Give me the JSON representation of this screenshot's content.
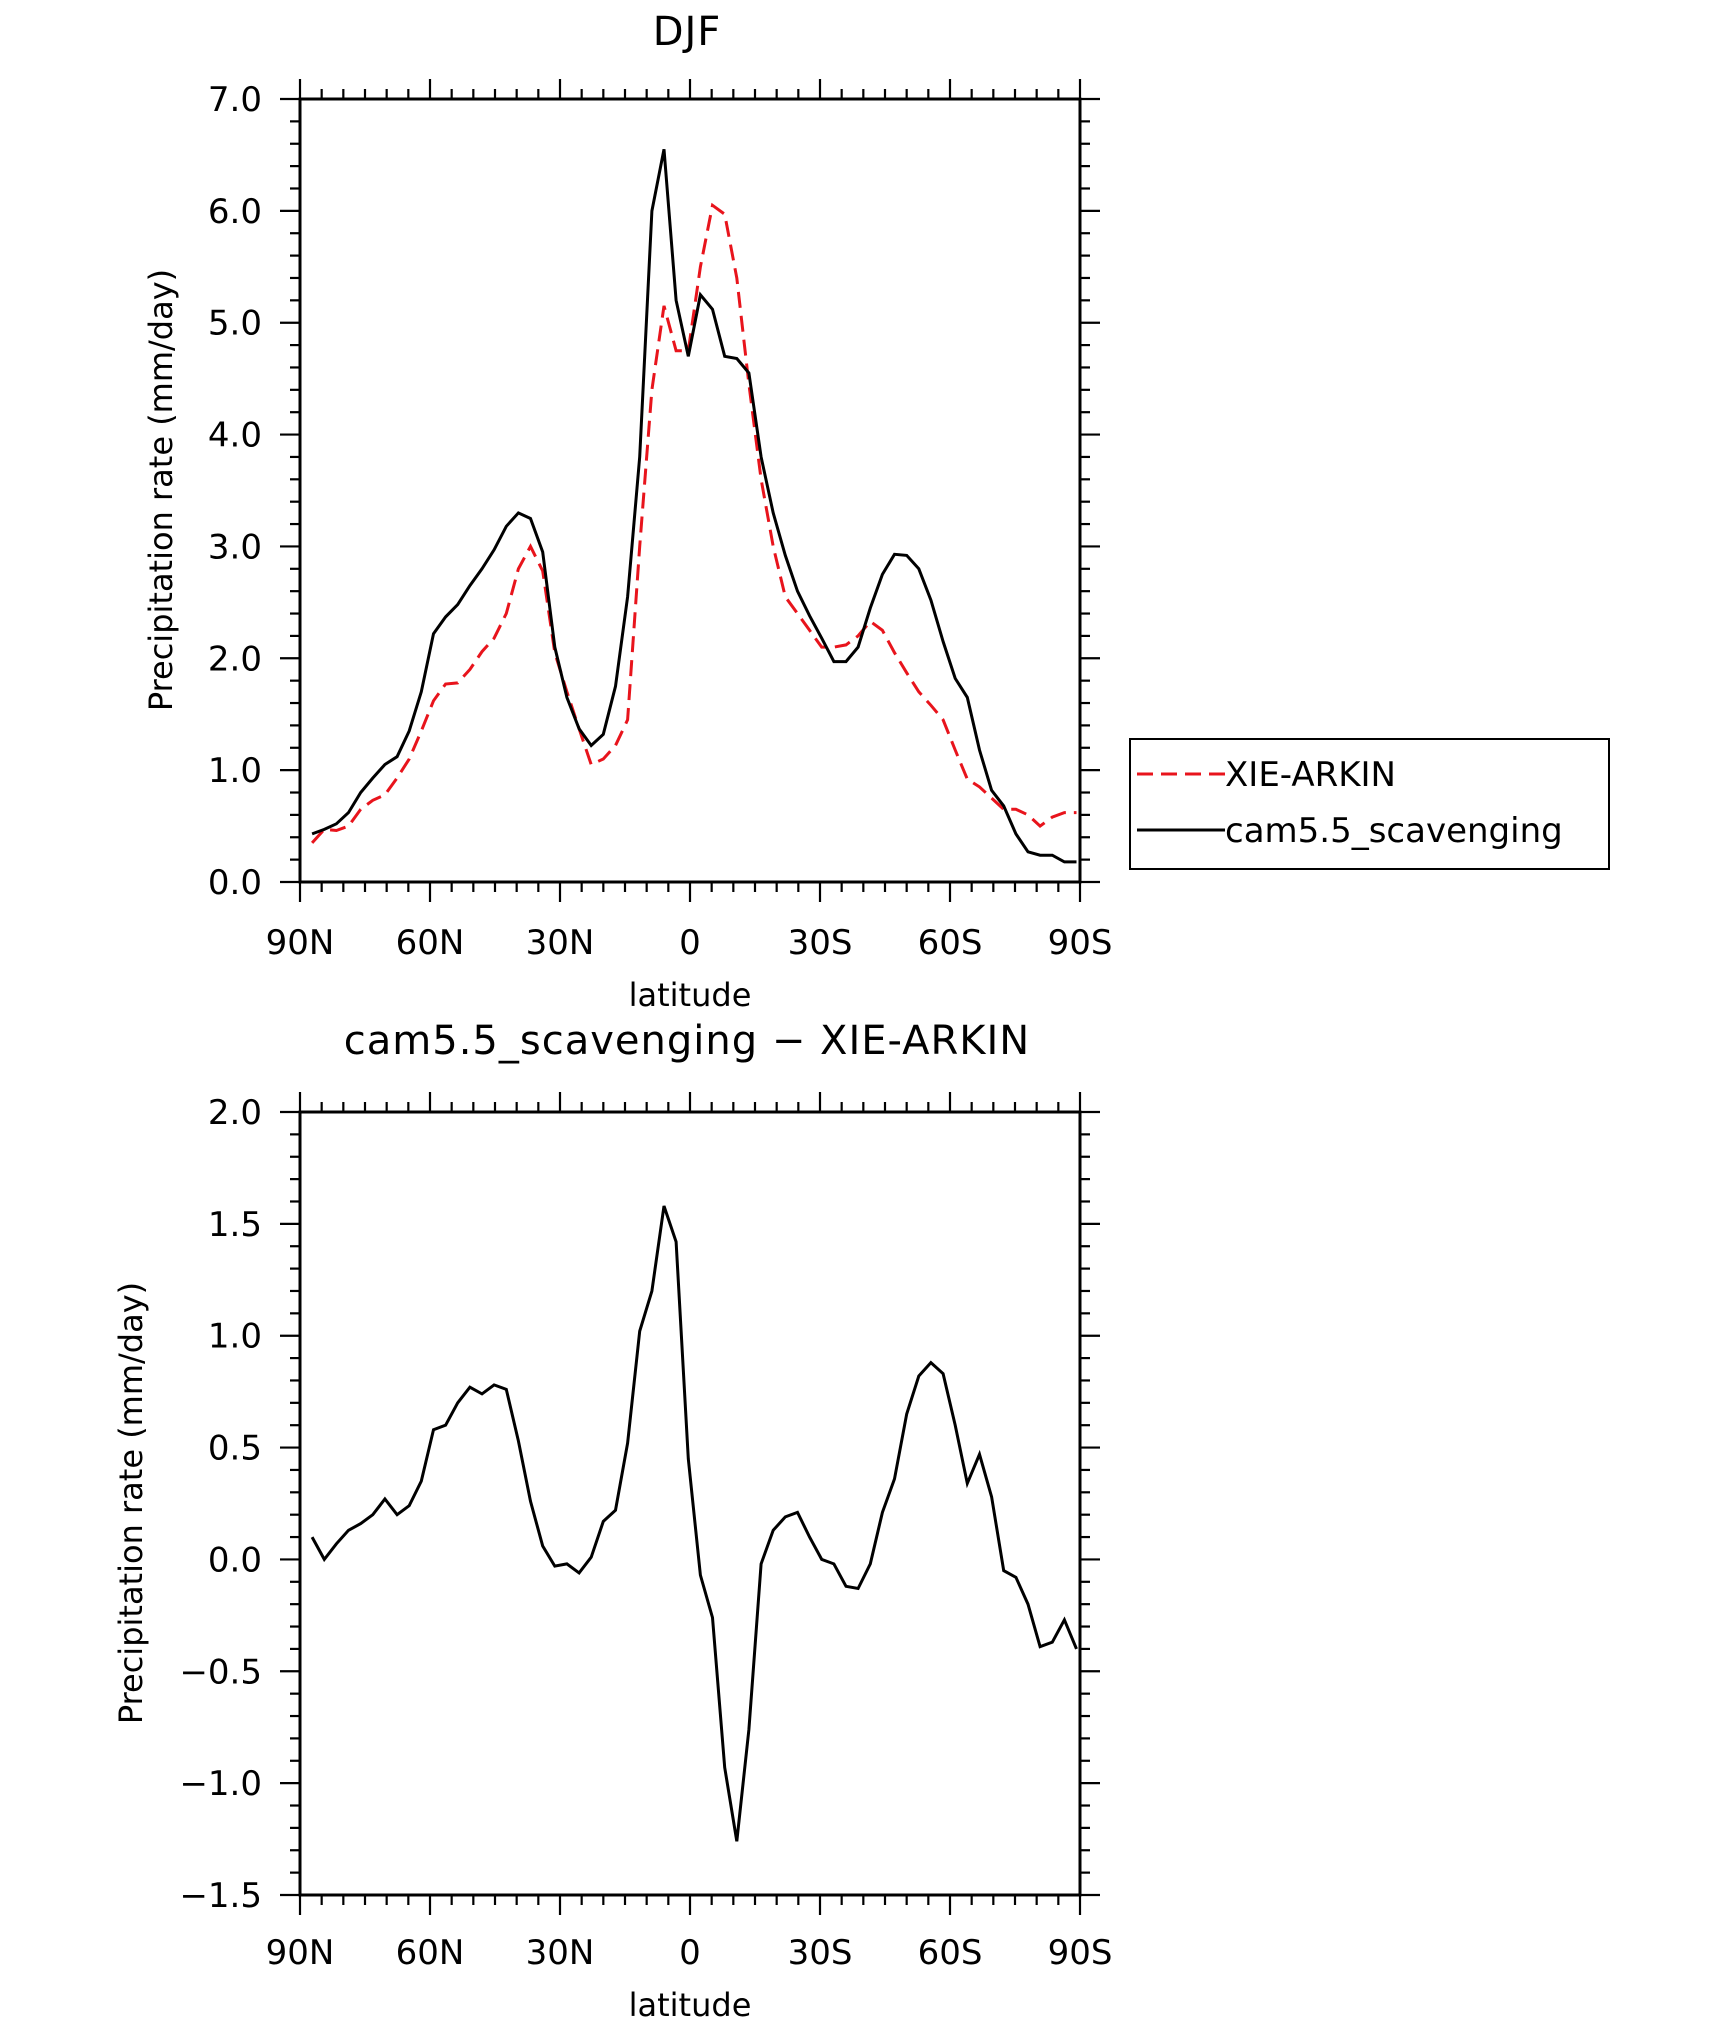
{
  "chart_data": [
    {
      "type": "line",
      "title": "DJF",
      "xlabel": "latitude",
      "ylabel": "Precipitation rate (mm/day)",
      "xlim": [
        -90,
        90
      ],
      "ylim": [
        0.0,
        7.0
      ],
      "xticks": [
        -90,
        -60,
        -30,
        0,
        30,
        60,
        90
      ],
      "xtick_labels": [
        "90N",
        "60N",
        "30N",
        "0",
        "30S",
        "60S",
        "90S"
      ],
      "yticks": [
        0.0,
        1.0,
        2.0,
        3.0,
        4.0,
        5.0,
        6.0,
        7.0
      ],
      "ytick_labels": [
        "0.0",
        "1.0",
        "2.0",
        "3.0",
        "4.0",
        "5.0",
        "6.0",
        "7.0"
      ],
      "legend_position": "right",
      "x": [
        -87.2,
        -84.4,
        -81.6,
        -78.8,
        -76.0,
        -73.2,
        -70.4,
        -67.6,
        -64.8,
        -62.0,
        -59.2,
        -56.4,
        -53.6,
        -50.8,
        -48.0,
        -45.2,
        -42.4,
        -39.6,
        -36.8,
        -34.0,
        -31.2,
        -28.4,
        -25.6,
        -22.8,
        -20.0,
        -17.2,
        -14.4,
        -11.6,
        -8.8,
        -6.0,
        -3.2,
        -0.4,
        2.4,
        5.2,
        8.0,
        10.8,
        13.6,
        16.4,
        19.2,
        22.0,
        24.8,
        27.6,
        30.4,
        33.2,
        36.0,
        38.8,
        41.6,
        44.4,
        47.2,
        50.0,
        52.8,
        55.6,
        58.4,
        61.2,
        64.0,
        66.8,
        69.6,
        72.4,
        75.2,
        78.0,
        80.8,
        83.6,
        86.4,
        89.2
      ],
      "series": [
        {
          "name": "XIE-ARKIN",
          "color": "#e8141c",
          "style": "dashed",
          "values": [
            0.35,
            0.47,
            0.46,
            0.5,
            0.65,
            0.73,
            0.78,
            0.93,
            1.1,
            1.35,
            1.62,
            1.77,
            1.78,
            1.9,
            2.06,
            2.18,
            2.4,
            2.8,
            3.0,
            2.78,
            2.05,
            1.7,
            1.37,
            1.05,
            1.1,
            1.22,
            1.45,
            3.0,
            4.4,
            5.15,
            4.75,
            4.75,
            5.5,
            6.05,
            5.97,
            5.4,
            4.45,
            3.6,
            3.0,
            2.55,
            2.4,
            2.25,
            2.1,
            2.1,
            2.12,
            2.2,
            2.33,
            2.25,
            2.05,
            1.87,
            1.7,
            1.58,
            1.45,
            1.18,
            0.92,
            0.85,
            0.75,
            0.65,
            0.65,
            0.6,
            0.5,
            0.58,
            0.62,
            0.62
          ]
        },
        {
          "name": "cam5.5_scavenging",
          "color": "#000000",
          "style": "solid",
          "values": [
            0.43,
            0.47,
            0.52,
            0.62,
            0.8,
            0.93,
            1.05,
            1.12,
            1.35,
            1.7,
            2.22,
            2.37,
            2.48,
            2.65,
            2.8,
            2.97,
            3.18,
            3.3,
            3.25,
            2.95,
            2.1,
            1.65,
            1.37,
            1.22,
            1.32,
            1.75,
            2.55,
            3.8,
            6.0,
            6.55,
            5.2,
            4.7,
            5.25,
            5.12,
            4.7,
            4.68,
            4.55,
            3.8,
            3.3,
            2.92,
            2.6,
            2.38,
            2.18,
            1.97,
            1.97,
            2.1,
            2.45,
            2.75,
            2.93,
            2.92,
            2.8,
            2.52,
            2.15,
            1.82,
            1.65,
            1.18,
            0.82,
            0.68,
            0.43,
            0.27,
            0.24,
            0.24,
            0.18,
            0.18
          ]
        }
      ]
    },
    {
      "type": "line",
      "title": "cam5.5_scavenging − XIE-ARKIN",
      "xlabel": "latitude",
      "ylabel": "Precipitation rate (mm/day)",
      "xlim": [
        -90,
        90
      ],
      "ylim": [
        -1.5,
        2.0
      ],
      "xticks": [
        -90,
        -60,
        -30,
        0,
        30,
        60,
        90
      ],
      "xtick_labels": [
        "90N",
        "60N",
        "30N",
        "0",
        "30S",
        "60S",
        "90S"
      ],
      "yticks": [
        -1.5,
        -1.0,
        -0.5,
        0.0,
        0.5,
        1.0,
        1.5,
        2.0
      ],
      "ytick_labels": [
        "−1.5",
        "−1.0",
        "−0.5",
        "0.0",
        "0.5",
        "1.0",
        "1.5",
        "2.0"
      ],
      "x": [
        -87.2,
        -84.4,
        -81.6,
        -78.8,
        -76.0,
        -73.2,
        -70.4,
        -67.6,
        -64.8,
        -62.0,
        -59.2,
        -56.4,
        -53.6,
        -50.8,
        -48.0,
        -45.2,
        -42.4,
        -39.6,
        -36.8,
        -34.0,
        -31.2,
        -28.4,
        -25.6,
        -22.8,
        -20.0,
        -17.2,
        -14.4,
        -11.6,
        -8.8,
        -6.0,
        -3.2,
        -0.4,
        2.4,
        5.2,
        8.0,
        10.8,
        13.6,
        16.4,
        19.2,
        22.0,
        24.8,
        27.6,
        30.4,
        33.2,
        36.0,
        38.8,
        41.6,
        44.4,
        47.2,
        50.0,
        52.8,
        55.6,
        58.4,
        61.2,
        64.0,
        66.8,
        69.6,
        72.4,
        75.2,
        78.0,
        80.8,
        83.6,
        86.4,
        89.2
      ],
      "series": [
        {
          "name": "cam5.5_scavenging − XIE-ARKIN",
          "color": "#000000",
          "style": "solid",
          "values": [
            0.1,
            0.0,
            0.07,
            0.13,
            0.16,
            0.2,
            0.27,
            0.2,
            0.24,
            0.35,
            0.58,
            0.6,
            0.7,
            0.77,
            0.74,
            0.78,
            0.76,
            0.53,
            0.26,
            0.06,
            -0.03,
            -0.02,
            -0.06,
            0.01,
            0.17,
            0.22,
            0.52,
            1.02,
            1.2,
            1.58,
            1.42,
            0.45,
            -0.07,
            -0.26,
            -0.93,
            -1.26,
            -0.76,
            -0.02,
            0.13,
            0.19,
            0.21,
            0.1,
            0.0,
            -0.02,
            -0.12,
            -0.13,
            -0.02,
            0.21,
            0.36,
            0.65,
            0.82,
            0.88,
            0.83,
            0.6,
            0.34,
            0.47,
            0.28,
            -0.05,
            -0.08,
            -0.2,
            -0.39,
            -0.37,
            -0.27,
            -0.4
          ]
        }
      ]
    }
  ]
}
